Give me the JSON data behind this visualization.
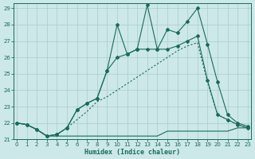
{
  "xlabel": "Humidex (Indice chaleur)",
  "bg_color": "#cce8e8",
  "line_color": "#1a6b5a",
  "grid_color": "#aacccc",
  "xlim": [
    -0.3,
    23.3
  ],
  "ylim": [
    21.0,
    29.3
  ],
  "yticks": [
    21,
    22,
    23,
    24,
    25,
    26,
    27,
    28,
    29
  ],
  "xticks": [
    0,
    1,
    2,
    3,
    4,
    5,
    6,
    7,
    8,
    9,
    10,
    11,
    12,
    13,
    14,
    15,
    16,
    17,
    18,
    19,
    20,
    21,
    22,
    23
  ],
  "line1_x": [
    0,
    1,
    2,
    3,
    4,
    5,
    6,
    7,
    8,
    9,
    10,
    11,
    12,
    13,
    14,
    15,
    16,
    17,
    18,
    19,
    20,
    21,
    22,
    23
  ],
  "line1_y": [
    22.0,
    21.9,
    21.6,
    21.2,
    21.2,
    21.2,
    21.2,
    21.2,
    21.2,
    21.2,
    21.2,
    21.2,
    21.2,
    21.2,
    21.2,
    21.5,
    21.5,
    21.5,
    21.5,
    21.5,
    21.5,
    21.5,
    21.7,
    21.7
  ],
  "line2_x": [
    0,
    1,
    2,
    3,
    4,
    5,
    6,
    7,
    8,
    9,
    10,
    11,
    12,
    13,
    14,
    15,
    16,
    17,
    18,
    19,
    20,
    21,
    22,
    23
  ],
  "line2_y": [
    22.0,
    21.9,
    21.6,
    21.2,
    21.3,
    21.7,
    22.2,
    22.7,
    23.3,
    23.6,
    24.0,
    24.4,
    24.8,
    25.2,
    25.6,
    26.0,
    26.4,
    26.7,
    26.9,
    24.5,
    22.5,
    22.2,
    21.9,
    21.7
  ],
  "line3_x": [
    0,
    1,
    2,
    3,
    4,
    5,
    6,
    7,
    8,
    9,
    10,
    11,
    12,
    13,
    14,
    15,
    16,
    17,
    18,
    19,
    20,
    21,
    22,
    23
  ],
  "line3_y": [
    22.0,
    21.9,
    21.6,
    21.2,
    21.3,
    21.7,
    22.8,
    23.2,
    23.5,
    25.2,
    26.0,
    26.2,
    26.5,
    26.5,
    26.5,
    26.5,
    26.7,
    27.0,
    27.3,
    24.6,
    22.5,
    22.2,
    21.9,
    21.7
  ],
  "line4_x": [
    0,
    1,
    2,
    3,
    4,
    5,
    6,
    7,
    8,
    9,
    10,
    11,
    12,
    13,
    14,
    15,
    16,
    17,
    18,
    19,
    20,
    21,
    22,
    23
  ],
  "line4_y": [
    22.0,
    21.9,
    21.6,
    21.2,
    21.3,
    21.7,
    22.8,
    23.2,
    23.5,
    25.2,
    28.0,
    26.2,
    26.5,
    29.2,
    26.5,
    27.7,
    27.5,
    28.2,
    29.0,
    26.8,
    24.5,
    22.5,
    22.0,
    21.8
  ]
}
